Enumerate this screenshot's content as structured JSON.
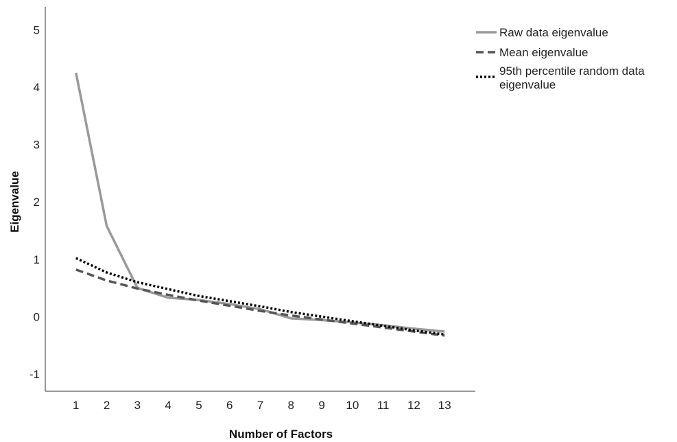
{
  "chart_data": {
    "type": "line",
    "title": "",
    "xlabel": "Number of Factors",
    "ylabel": "Eigenvalue",
    "x": [
      1,
      2,
      3,
      4,
      5,
      6,
      7,
      8,
      9,
      10,
      11,
      12,
      13
    ],
    "xlim": [
      0,
      14
    ],
    "ylim": [
      -1.3,
      5.4
    ],
    "yticks": [
      -1,
      0,
      1,
      2,
      3,
      4,
      5
    ],
    "grid": false,
    "legend_position": "top-right",
    "series": [
      {
        "name": "Raw data eigenvalue",
        "style": "solid",
        "color": "#999999",
        "values": [
          4.25,
          1.58,
          0.5,
          0.33,
          0.29,
          0.22,
          0.13,
          -0.03,
          -0.06,
          -0.1,
          -0.15,
          -0.21,
          -0.26
        ]
      },
      {
        "name": "Mean eigenvalue",
        "style": "dashed",
        "color": "#555555",
        "values": [
          0.82,
          0.63,
          0.49,
          0.38,
          0.28,
          0.19,
          0.1,
          0.02,
          -0.05,
          -0.12,
          -0.19,
          -0.26,
          -0.33
        ]
      },
      {
        "name": "95th percentile random data eigenvalue",
        "style": "dotted",
        "color": "#000000",
        "values": [
          1.02,
          0.77,
          0.6,
          0.48,
          0.36,
          0.27,
          0.18,
          0.08,
          0.0,
          -0.08,
          -0.16,
          -0.24,
          -0.31
        ]
      }
    ]
  }
}
